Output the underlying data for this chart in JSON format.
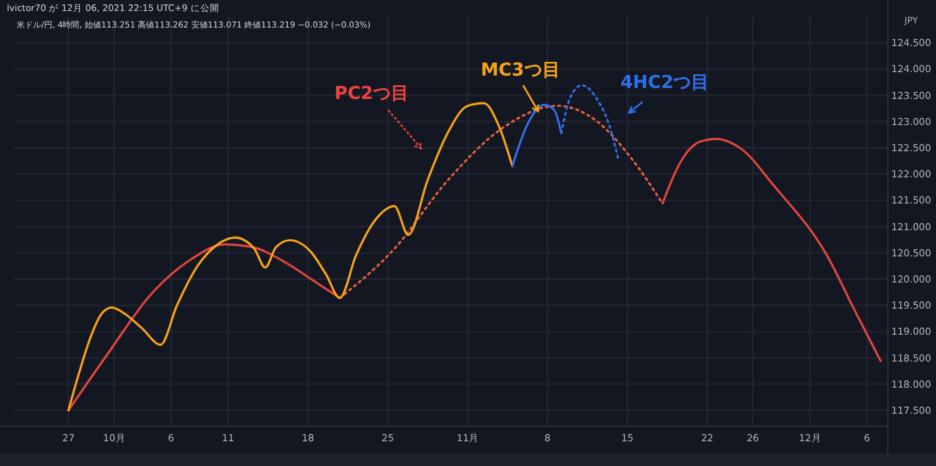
{
  "chart_data": {
    "type": "line",
    "title": "lvictor70 が 12月 06, 2021 22:15 UTC+9 に公開",
    "subtitle": "米ドル/円, 4時間, 始値113.251 高値113.262 安値113.071 終値113.219 −0.032 (−0.03%)",
    "ylabel": "JPY",
    "xlim": [
      "2021-09-22T05:00",
      "2021-12-07T20:00"
    ],
    "xticks": [
      {
        "value": "2021-09-27",
        "label": "27"
      },
      {
        "value": "2021-10-01",
        "label": "10月"
      },
      {
        "value": "2021-10-06",
        "label": "6"
      },
      {
        "value": "2021-10-11",
        "label": "11"
      },
      {
        "value": "2021-10-18",
        "label": "18"
      },
      {
        "value": "2021-10-25",
        "label": "25"
      },
      {
        "value": "2021-11-01",
        "label": "11月"
      },
      {
        "value": "2021-11-08",
        "label": "8"
      },
      {
        "value": "2021-11-15",
        "label": "15"
      },
      {
        "value": "2021-11-22",
        "label": "22"
      },
      {
        "value": "2021-11-26",
        "label": "26"
      },
      {
        "value": "2021-12-01",
        "label": "12月"
      },
      {
        "value": "2021-12-06",
        "label": "6"
      }
    ],
    "ylim": [
      117.2,
      125.0
    ],
    "yticks": [
      {
        "value": 117.5,
        "label": "117.500"
      },
      {
        "value": 118,
        "label": "118.000"
      },
      {
        "value": 118.5,
        "label": "118.500"
      },
      {
        "value": 119,
        "label": "119.000"
      },
      {
        "value": 119.5,
        "label": "119.500"
      },
      {
        "value": 120,
        "label": "120.000"
      },
      {
        "value": 120.5,
        "label": "120.500"
      },
      {
        "value": 121,
        "label": "121.000"
      },
      {
        "value": 121.5,
        "label": "121.500"
      },
      {
        "value": 122,
        "label": "122.000"
      },
      {
        "value": 122.5,
        "label": "122.500"
      },
      {
        "value": 123,
        "label": "123.000"
      },
      {
        "value": 123.5,
        "label": "123.500"
      },
      {
        "value": 124,
        "label": "124.000"
      },
      {
        "value": 124.5,
        "label": "124.500"
      }
    ],
    "grid": true,
    "series": [
      {
        "color": "#e0453f",
        "x": [
          "2021-09-27T00:00",
          "2021-09-30T14:00",
          "2021-10-04T02:00",
          "2021-10-07T17:00",
          "2021-10-10T17:00",
          "2021-10-13T02:00",
          "2021-10-16T00:00",
          "2021-10-18T10:00",
          "2021-10-20T19:00"
        ],
        "values": [
          117.5,
          118.62,
          119.67,
          120.37,
          120.66,
          120.61,
          120.32,
          119.98,
          119.64
        ]
      },
      {
        "color": "#e0603a",
        "line_style": "dotted",
        "x": [
          "2021-10-20T19:00",
          "2021-10-25T14:00",
          "2021-10-30T07:00",
          "2021-11-04T02:00",
          "2021-11-08T22:00",
          "2021-11-12T10:00",
          "2021-11-15T10:00",
          "2021-11-18T02:00"
        ],
        "values": [
          119.64,
          120.58,
          121.89,
          122.88,
          123.3,
          122.99,
          122.28,
          121.44
        ]
      },
      {
        "color": "#e0453f",
        "x": [
          "2021-11-18T02:00",
          "2021-11-19T14:00",
          "2021-11-21T10:00",
          "2021-11-22T19:00",
          "2021-11-24T22:00",
          "2021-11-27T22:00",
          "2021-12-02T12:00",
          "2021-12-04T22:00",
          "2021-12-07T05:00"
        ],
        "values": [
          121.44,
          122.2,
          122.62,
          122.67,
          122.49,
          121.76,
          120.45,
          119.41,
          118.44
        ]
      },
      {
        "color": "#f7a21b",
        "x": [
          "2021-09-27T00:00",
          "2021-09-27T23:00",
          "2021-09-28T22:00",
          "2021-09-29T21:00",
          "2021-09-30T19:00",
          "2021-10-02T00:00",
          "2021-10-03T10:00",
          "2021-10-05T02:00",
          "2021-10-06T12:00",
          "2021-10-08T07:00",
          "2021-10-10T02:00",
          "2021-10-11T15:00",
          "2021-10-13T07:00",
          "2021-10-14T06:00",
          "2021-10-15T05:00",
          "2021-10-16T10:00",
          "2021-10-18T05:00",
          "2021-10-19T14:00",
          "2021-10-20T19:00",
          "2021-10-22T05:00",
          "2021-10-23T22:00",
          "2021-10-25T14:00",
          "2021-10-26T19:00",
          "2021-10-28T12:00",
          "2021-10-30T07:00",
          "2021-11-01T00:00",
          "2021-11-02T10:00",
          "2021-11-03T17:00",
          "2021-11-04T22:00"
        ],
        "values": [
          117.5,
          118.23,
          118.88,
          119.33,
          119.46,
          119.33,
          119.07,
          118.75,
          119.49,
          120.24,
          120.66,
          120.79,
          120.58,
          120.22,
          120.61,
          120.74,
          120.53,
          120.09,
          119.64,
          120.45,
          121.13,
          121.39,
          120.84,
          121.89,
          122.8,
          123.3,
          123.35,
          122.93,
          122.15
        ]
      },
      {
        "color": "#2f6fe8",
        "x": [
          "2021-11-04T22:00",
          "2021-11-06T05:00",
          "2021-11-07T17:00",
          "2021-11-08T14:00",
          "2021-11-09T05:00"
        ],
        "values": [
          122.15,
          122.93,
          123.32,
          123.22,
          122.78
        ]
      },
      {
        "color": "#2f6fe8",
        "line_style": "dotted",
        "x": [
          "2021-11-09T05:00",
          "2021-11-10T00:00",
          "2021-11-11T00:00",
          "2021-11-12T10:00",
          "2021-11-13T10:00",
          "2021-11-14T05:00"
        ],
        "values": [
          122.78,
          123.46,
          123.69,
          123.4,
          122.93,
          122.28
        ]
      }
    ],
    "annotations": [
      "PC2つ目",
      "MC3つ目",
      "4HC2つ目"
    ]
  }
}
